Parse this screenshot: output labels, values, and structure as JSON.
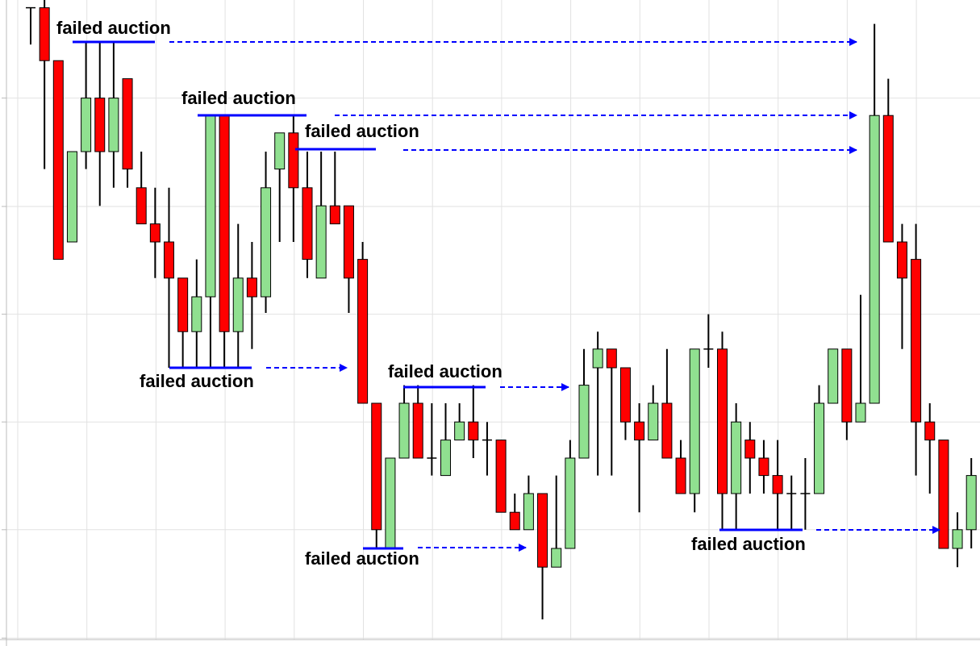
{
  "chart_data": {
    "type": "candlestick",
    "annotations": [
      "failed auction",
      "failed auction",
      "failed auction",
      "failed auction",
      "failed auction",
      "failed auction",
      "failed auction"
    ],
    "up_color": "#90e090",
    "down_color": "#ff0000",
    "ylim": [
      0,
      100
    ],
    "yticks": [
      1.1,
      17.9,
      34.6,
      51.3,
      68,
      84.8
    ],
    "grid": true,
    "open": [
      98.8,
      98.8,
      90.6,
      62.5,
      76.5,
      84.8,
      76.5,
      87.8,
      70.9,
      65.3,
      62.5,
      56.9,
      48.6,
      54,
      82.1,
      48.6,
      56.9,
      54,
      73.8,
      79.4,
      70.9,
      56.9,
      68.1,
      68.1,
      59.8,
      37.5,
      15,
      29,
      37.5,
      29,
      26.3,
      31.8,
      34.6,
      31.8,
      31.8,
      20.6,
      17.9,
      23.5,
      12.1,
      15,
      29,
      43,
      45.9,
      43,
      34.6,
      31.8,
      37.5,
      29,
      23.5,
      45.9,
      45.9,
      23.5,
      31.8,
      29,
      26.3,
      23.5,
      23.5,
      23.5,
      37.5,
      45.9,
      34.6,
      37.5,
      82.1,
      62.5,
      59.8,
      34.6,
      31.8,
      15,
      17.9
    ],
    "high": [
      98.8,
      100,
      90.6,
      76.5,
      93.5,
      93.5,
      93.5,
      87.8,
      76.5,
      70.9,
      70.9,
      56.9,
      59.8,
      82.1,
      82.1,
      65.3,
      62.5,
      76.5,
      79.4,
      82.1,
      76.5,
      76.5,
      76.5,
      68.1,
      62.5,
      37.5,
      29,
      40.3,
      40.3,
      37.5,
      37.5,
      37.5,
      40.3,
      34.6,
      31.8,
      23.5,
      26.3,
      23.5,
      26.3,
      31.8,
      45.9,
      48.6,
      45.9,
      43,
      37.5,
      40.3,
      45.9,
      31.8,
      45.9,
      51.3,
      48.6,
      37.5,
      34.6,
      31.8,
      31.8,
      26.3,
      29,
      40.3,
      45.9,
      45.9,
      54.3,
      96.3,
      87.8,
      65.3,
      65.3,
      37.5,
      31.8,
      20.6,
      29
    ],
    "low": [
      93.1,
      73.8,
      59.8,
      62.5,
      73.8,
      68.1,
      70.9,
      70.9,
      65.3,
      56.9,
      43,
      43,
      43,
      43,
      43,
      43,
      45.9,
      51.5,
      62.5,
      62.5,
      56.9,
      56.9,
      65.3,
      51.5,
      37.5,
      15,
      15,
      29,
      29,
      26.3,
      26.3,
      31.8,
      29,
      26.3,
      20.6,
      17.9,
      17.9,
      4,
      12.1,
      15,
      29,
      26.3,
      26.3,
      31.8,
      20.6,
      31.8,
      29,
      23.5,
      20.6,
      43,
      17.9,
      17.9,
      23.5,
      23.5,
      17.9,
      17.9,
      17.9,
      23.5,
      37.5,
      31.8,
      34.6,
      37.5,
      62.5,
      45.9,
      26.3,
      23.5,
      15,
      12.1,
      15
    ],
    "close": [
      98.8,
      90.6,
      59.8,
      76.5,
      84.8,
      76.5,
      84.8,
      73.8,
      65.3,
      62.5,
      56.9,
      48.6,
      54,
      82.1,
      48.6,
      56.9,
      54,
      70.9,
      79.4,
      70.9,
      59.8,
      68.1,
      65.3,
      56.9,
      37.5,
      17.9,
      29,
      37.5,
      29,
      29,
      31.8,
      34.6,
      31.8,
      31.8,
      20.6,
      17.9,
      23.5,
      12.1,
      15,
      29,
      40.3,
      45.9,
      43,
      34.6,
      31.8,
      37.5,
      29,
      23.5,
      45.9,
      45.9,
      23.5,
      34.6,
      29,
      26.3,
      23.5,
      23.5,
      23.5,
      37.5,
      45.9,
      34.6,
      37.5,
      82.1,
      62.5,
      56.9,
      34.6,
      31.8,
      15,
      17.9,
      26.3
    ]
  }
}
